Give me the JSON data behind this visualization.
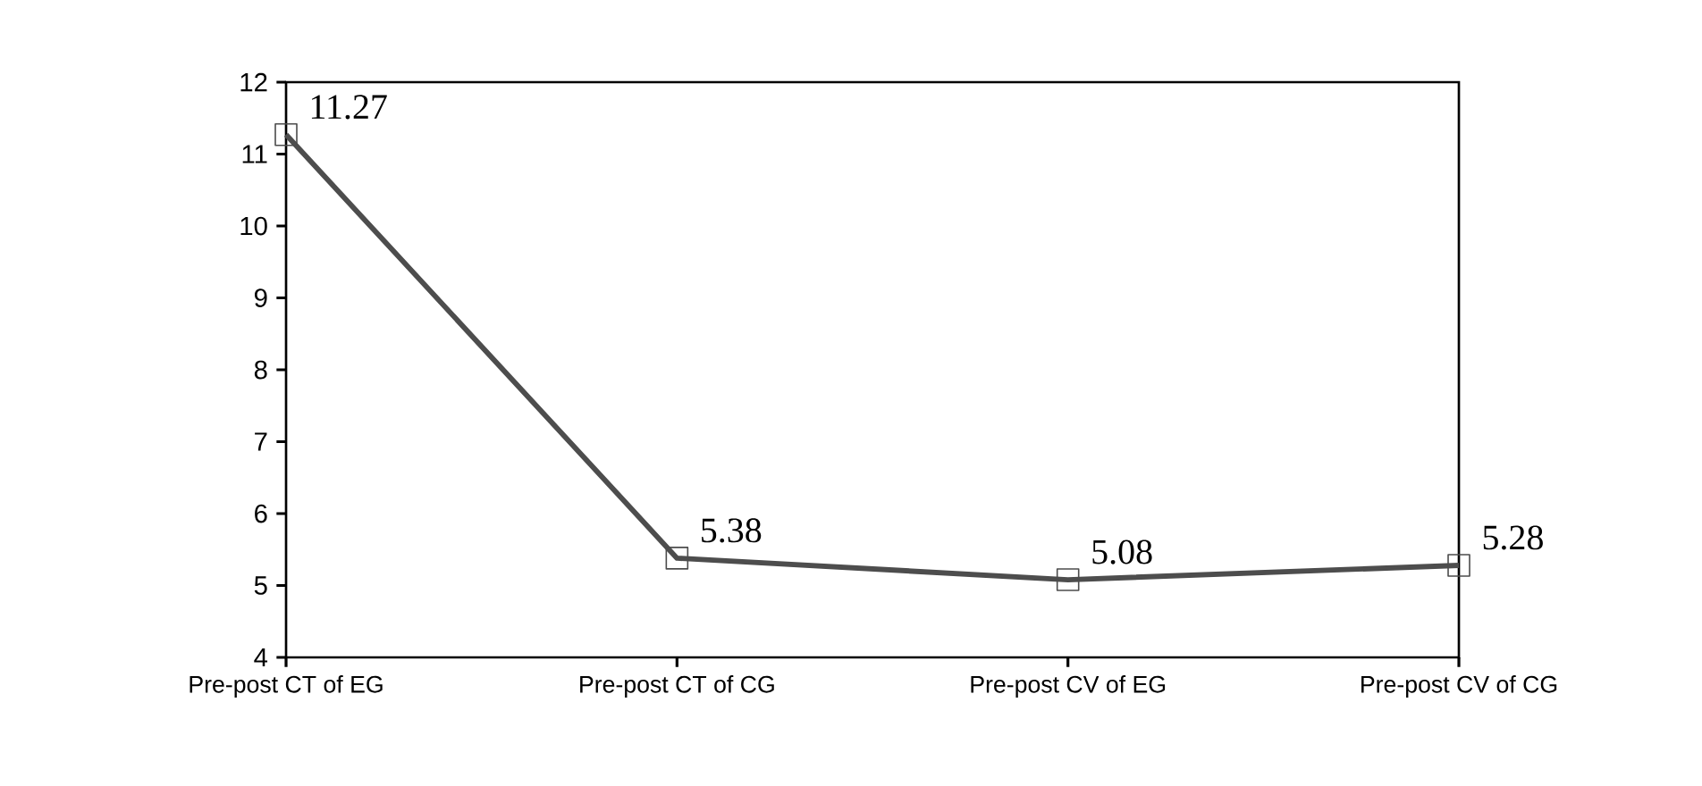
{
  "chart_data": {
    "type": "line",
    "categories": [
      "Pre-post CT of EG",
      "Pre-post CT of CG",
      "Pre-post CV of EG",
      "Pre-post CV of CG"
    ],
    "values": [
      11.27,
      5.38,
      5.08,
      5.28
    ],
    "color": "#4d4d4d",
    "ylim": [
      4,
      12
    ],
    "yticks": [
      4,
      5,
      6,
      7,
      8,
      9,
      10,
      11,
      12
    ],
    "data_labels": true,
    "marker": "square",
    "line_style": "solid",
    "grid": false
  }
}
